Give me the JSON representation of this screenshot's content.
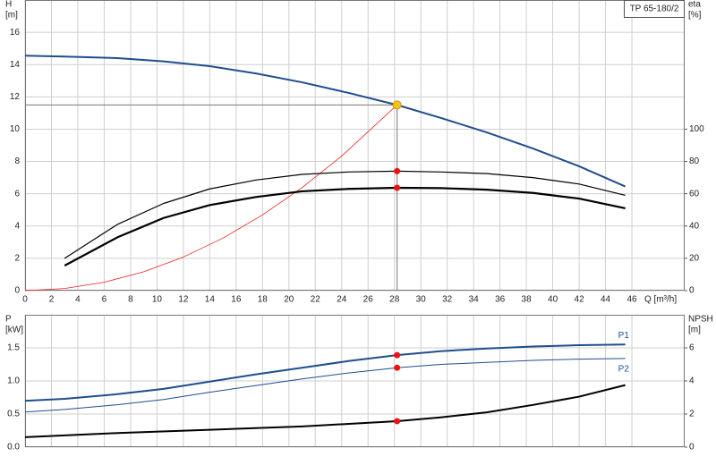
{
  "chart_data": [
    {
      "type": "line",
      "title": "TP 65-180/2",
      "xlabel": "Q [m³/h]",
      "ylabel": [
        "H",
        "[m]"
      ],
      "y2label": [
        "eta",
        "[%]"
      ],
      "xlim": [
        0,
        50
      ],
      "xticks": [
        0,
        2,
        4,
        6,
        8,
        10,
        12,
        14,
        16,
        18,
        20,
        22,
        24,
        26,
        28,
        30,
        32,
        34,
        36,
        38,
        40,
        42,
        44,
        46
      ],
      "ylim": [
        0,
        18
      ],
      "yticks": [
        0,
        2,
        4,
        6,
        8,
        10,
        12,
        14,
        16
      ],
      "y2lim": [
        0,
        180
      ],
      "y2ticks": [
        0,
        20,
        40,
        60,
        80,
        100
      ],
      "grid": true,
      "xtick_labels": true,
      "crosshair": true,
      "series": [
        {
          "color": "#1f4e8c",
          "line_width": 2,
          "x": [
            0,
            3,
            7,
            10.5,
            14,
            17.5,
            21,
            24.5,
            28.2,
            31.5,
            35,
            38.5,
            42,
            45.5
          ],
          "values": [
            14.55,
            14.5,
            14.4,
            14.2,
            13.9,
            13.45,
            12.9,
            12.25,
            11.5,
            10.7,
            9.8,
            8.8,
            7.7,
            6.45
          ]
        },
        {
          "color": "#ee2222",
          "line_width": 0.8,
          "x": [
            0,
            3,
            6,
            9,
            12,
            15,
            18,
            21,
            24,
            28.2
          ],
          "values": [
            0,
            0.13,
            0.52,
            1.17,
            2.08,
            3.25,
            4.69,
            6.38,
            8.33,
            11.5
          ]
        },
        {
          "color": "#000000",
          "line_width": 1.2,
          "axis": "y2",
          "x": [
            3,
            7,
            10.5,
            14,
            17.5,
            21,
            24.5,
            28.2,
            31.5,
            35,
            38.5,
            42,
            45.5
          ],
          "values": [
            20,
            41,
            54,
            63,
            68.5,
            72,
            73.5,
            74,
            73.5,
            72.5,
            70,
            66,
            59
          ]
        },
        {
          "color": "#000000",
          "line_width": 2.2,
          "axis": "y2",
          "x": [
            3,
            7,
            10.5,
            14,
            17.5,
            21,
            24.5,
            28.2,
            31.5,
            35,
            38.5,
            42,
            45.5
          ],
          "values": [
            15.5,
            33,
            45,
            53,
            58,
            61.5,
            63,
            63.7,
            63.5,
            62.5,
            60.5,
            57,
            51
          ]
        }
      ],
      "markers": [
        {
          "x": 28.2,
          "y": 11.5,
          "color": "#f5c518"
        },
        {
          "x": 28.2,
          "y": 74,
          "axis": "y2",
          "color": "#ee1111"
        },
        {
          "x": 28.2,
          "y": 63.7,
          "axis": "y2",
          "color": "#ee1111"
        }
      ]
    },
    {
      "type": "line",
      "ylabel": [
        "P",
        "[kW]"
      ],
      "y2label": [
        "NPSH",
        "[m]"
      ],
      "xlim": [
        0,
        50
      ],
      "xticks": [
        0,
        2,
        4,
        6,
        8,
        10,
        12,
        14,
        16,
        18,
        20,
        22,
        24,
        26,
        28,
        30,
        32,
        34,
        36,
        38,
        40,
        42,
        44,
        46
      ],
      "ylim": [
        0,
        2
      ],
      "yticks": [
        {
          "value": 0,
          "label": "0.0"
        },
        0.5,
        {
          "value": 1,
          "label": "1.0"
        },
        1.5
      ],
      "y2lim": [
        0,
        8
      ],
      "y2ticks": [
        0,
        2,
        4,
        6
      ],
      "grid": true,
      "xtick_labels": false,
      "series": [
        {
          "name": "P1",
          "color": "#1f4e8c",
          "line_width": 2,
          "x": [
            0,
            3,
            7,
            10.5,
            14,
            17.5,
            21,
            24.5,
            28.2,
            31.5,
            35,
            38.5,
            42,
            45.5
          ],
          "values": [
            0.7,
            0.73,
            0.8,
            0.88,
            0.99,
            1.1,
            1.2,
            1.3,
            1.39,
            1.45,
            1.49,
            1.52,
            1.54,
            1.55
          ]
        },
        {
          "name": "P2",
          "color": "#1f4e8c",
          "line_width": 1,
          "x": [
            0,
            3,
            7,
            10.5,
            14,
            17.5,
            21,
            24.5,
            28.2,
            31.5,
            35,
            38.5,
            42,
            45.5
          ],
          "values": [
            0.53,
            0.57,
            0.64,
            0.72,
            0.83,
            0.93,
            1.03,
            1.12,
            1.2,
            1.25,
            1.28,
            1.31,
            1.33,
            1.34
          ]
        },
        {
          "color": "#000000",
          "line_width": 2,
          "axis": "y2",
          "x": [
            0,
            7,
            14,
            21,
            28.2,
            31.5,
            35,
            38.5,
            42,
            45.5
          ],
          "values": [
            0.6,
            0.85,
            1.05,
            1.25,
            1.57,
            1.8,
            2.1,
            2.55,
            3.05,
            3.75
          ]
        }
      ],
      "markers": [
        {
          "x": 28.2,
          "y": 1.39,
          "color": "#ee1111"
        },
        {
          "x": 28.2,
          "y": 1.2,
          "color": "#ee1111"
        },
        {
          "x": 28.2,
          "y": 1.57,
          "axis": "y2",
          "color": "#ee1111"
        }
      ]
    }
  ]
}
